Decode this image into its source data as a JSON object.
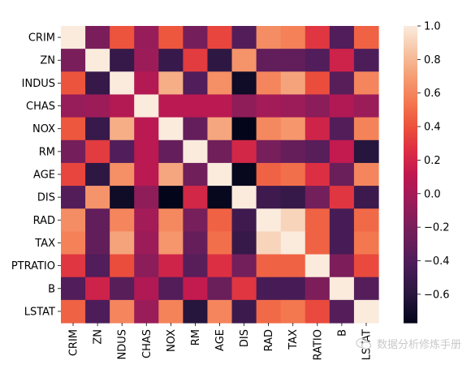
{
  "chart_data": {
    "type": "heatmap",
    "title": "",
    "xlabel": "",
    "ylabel": "",
    "row_labels": [
      "CRIM",
      "ZN",
      "INDUS",
      "CHAS",
      "NOX",
      "RM",
      "AGE",
      "DIS",
      "RAD",
      "TAX",
      "PTRATIO",
      "B",
      "LSTAT"
    ],
    "col_labels": [
      "CRIM",
      "ZN",
      "INDUS",
      "CHAS",
      "NOX",
      "RM",
      "AGE",
      "DIS",
      "RAD",
      "TAX",
      "PTRATIO",
      "B",
      "LSTAT"
    ],
    "values": [
      [
        1.0,
        -0.2,
        0.41,
        -0.06,
        0.42,
        -0.22,
        0.35,
        -0.38,
        0.63,
        0.58,
        0.29,
        -0.39,
        0.46
      ],
      [
        -0.2,
        1.0,
        -0.53,
        -0.04,
        -0.52,
        0.31,
        -0.57,
        0.66,
        -0.31,
        -0.31,
        -0.39,
        0.18,
        -0.41
      ],
      [
        0.41,
        -0.53,
        1.0,
        0.06,
        0.76,
        -0.39,
        0.64,
        -0.71,
        0.6,
        0.72,
        0.38,
        -0.36,
        0.6
      ],
      [
        -0.06,
        -0.04,
        0.06,
        1.0,
        0.09,
        0.09,
        0.09,
        -0.1,
        -0.01,
        -0.04,
        -0.12,
        0.05,
        -0.05
      ],
      [
        0.42,
        -0.52,
        0.76,
        0.09,
        1.0,
        -0.3,
        0.73,
        -0.77,
        0.61,
        0.67,
        0.19,
        -0.38,
        0.59
      ],
      [
        -0.22,
        0.31,
        -0.39,
        0.09,
        -0.3,
        1.0,
        -0.24,
        0.21,
        -0.21,
        -0.29,
        -0.36,
        0.13,
        -0.61
      ],
      [
        0.35,
        -0.57,
        0.64,
        0.09,
        0.73,
        -0.24,
        1.0,
        -0.75,
        0.46,
        0.51,
        0.26,
        -0.27,
        0.6
      ],
      [
        -0.38,
        0.66,
        -0.71,
        -0.1,
        -0.77,
        0.21,
        -0.75,
        1.0,
        -0.49,
        -0.53,
        -0.23,
        0.29,
        -0.5
      ],
      [
        0.63,
        -0.31,
        0.6,
        -0.01,
        0.61,
        -0.21,
        0.46,
        -0.49,
        1.0,
        0.91,
        0.46,
        -0.44,
        0.49
      ],
      [
        0.58,
        -0.31,
        0.72,
        -0.04,
        0.67,
        -0.29,
        0.51,
        -0.53,
        0.91,
        1.0,
        0.46,
        -0.44,
        0.54
      ],
      [
        0.29,
        -0.39,
        0.38,
        -0.12,
        0.19,
        -0.36,
        0.26,
        -0.23,
        0.46,
        0.46,
        1.0,
        -0.18,
        0.37
      ],
      [
        -0.39,
        0.18,
        -0.36,
        0.05,
        -0.38,
        0.13,
        -0.27,
        0.29,
        -0.44,
        -0.44,
        -0.18,
        1.0,
        -0.37
      ],
      [
        0.46,
        -0.41,
        0.6,
        -0.05,
        0.59,
        -0.61,
        0.6,
        -0.5,
        0.49,
        0.54,
        0.37,
        -0.37,
        1.0
      ]
    ],
    "vmin": -0.77,
    "vmax": 1.0,
    "colormap": "rocket",
    "colorbar_ticks": [
      1.0,
      0.8,
      0.6,
      0.4,
      0.2,
      0.0,
      -0.2,
      -0.4,
      -0.6
    ],
    "colorbar_tick_labels": [
      "1.0",
      "0.8",
      "0.6",
      "0.4",
      "0.2",
      "0.0",
      "−0.2",
      "−0.4",
      "−0.6"
    ],
    "x_tick_labels_displayed": [
      "CRIM",
      "ZN",
      "NDUS",
      "CHAS",
      "NOX",
      "RM",
      "AGE",
      "DIS",
      "RAD",
      "TAX",
      "RATIO",
      "B",
      "LSTAT"
    ]
  },
  "watermark": {
    "text": "数据分析修炼手册",
    "icon": "wechat-icon"
  }
}
